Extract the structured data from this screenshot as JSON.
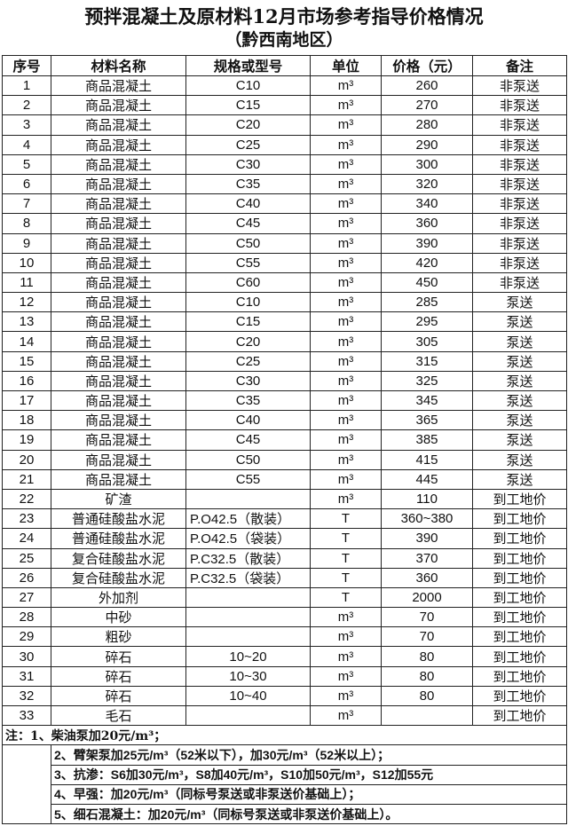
{
  "title": "预拌混凝土及原材料12月市场参考指导价格情况",
  "subtitle": "（黔西南地区）",
  "headers": [
    "序号",
    "材料名称",
    "规格或型号",
    "单位",
    "价格（元）",
    "备注"
  ],
  "rows": [
    [
      "1",
      "商品混凝土",
      "C10",
      "m³",
      "260",
      "非泵送"
    ],
    [
      "2",
      "商品混凝土",
      "C15",
      "m³",
      "270",
      "非泵送"
    ],
    [
      "3",
      "商品混凝土",
      "C20",
      "m³",
      "280",
      "非泵送"
    ],
    [
      "4",
      "商品混凝土",
      "C25",
      "m³",
      "290",
      "非泵送"
    ],
    [
      "5",
      "商品混凝土",
      "C30",
      "m³",
      "300",
      "非泵送"
    ],
    [
      "6",
      "商品混凝土",
      "C35",
      "m³",
      "320",
      "非泵送"
    ],
    [
      "7",
      "商品混凝土",
      "C40",
      "m³",
      "340",
      "非泵送"
    ],
    [
      "8",
      "商品混凝土",
      "C45",
      "m³",
      "360",
      "非泵送"
    ],
    [
      "9",
      "商品混凝土",
      "C50",
      "m³",
      "390",
      "非泵送"
    ],
    [
      "10",
      "商品混凝土",
      "C55",
      "m³",
      "420",
      "非泵送"
    ],
    [
      "11",
      "商品混凝土",
      "C60",
      "m³",
      "450",
      "非泵送"
    ],
    [
      "12",
      "商品混凝土",
      "C10",
      "m³",
      "285",
      "泵送"
    ],
    [
      "13",
      "商品混凝土",
      "C15",
      "m³",
      "295",
      "泵送"
    ],
    [
      "14",
      "商品混凝土",
      "C20",
      "m³",
      "305",
      "泵送"
    ],
    [
      "15",
      "商品混凝土",
      "C25",
      "m³",
      "315",
      "泵送"
    ],
    [
      "16",
      "商品混凝土",
      "C30",
      "m³",
      "325",
      "泵送"
    ],
    [
      "17",
      "商品混凝土",
      "C35",
      "m³",
      "345",
      "泵送"
    ],
    [
      "18",
      "商品混凝土",
      "C40",
      "m³",
      "365",
      "泵送"
    ],
    [
      "19",
      "商品混凝土",
      "C45",
      "m³",
      "385",
      "泵送"
    ],
    [
      "20",
      "商品混凝土",
      "C50",
      "m³",
      "415",
      "泵送"
    ],
    [
      "21",
      "商品混凝土",
      "C55",
      "m³",
      "445",
      "泵送"
    ],
    [
      "22",
      "矿渣",
      "",
      "m³",
      "110",
      "到工地价"
    ],
    [
      "23",
      "普通硅酸盐水泥",
      "P.O42.5（散装）",
      "T",
      "360~380",
      "到工地价"
    ],
    [
      "24",
      "普通硅酸盐水泥",
      "P.O42.5（袋装）",
      "T",
      "390",
      "到工地价"
    ],
    [
      "25",
      "复合硅酸盐水泥",
      "P.C32.5（散装）",
      "T",
      "370",
      "到工地价"
    ],
    [
      "26",
      "复合硅酸盐水泥",
      "P.C32.5（袋装）",
      "T",
      "360",
      "到工地价"
    ],
    [
      "27",
      "外加剂",
      "",
      "T",
      "2000",
      "到工地价"
    ],
    [
      "28",
      "中砂",
      "",
      "m³",
      "70",
      "到工地价"
    ],
    [
      "29",
      "粗砂",
      "",
      "m³",
      "70",
      "到工地价"
    ],
    [
      "30",
      "碎石",
      "10~20",
      "m³",
      "80",
      "到工地价"
    ],
    [
      "31",
      "碎石",
      "10~30",
      "m³",
      "80",
      "到工地价"
    ],
    [
      "32",
      "碎石",
      "10~40",
      "m³",
      "80",
      "到工地价"
    ],
    [
      "33",
      "毛石",
      "",
      "m³",
      "",
      "到工地价"
    ]
  ],
  "notes": [
    "注：1、柴油泵加20元/m³；",
    "2、臂架泵加25元/m³（52米以下），加30元/m³（52米以上）；",
    "3、抗渗：S6加30元/m³，S8加40元/m³，S10加50元/m³，S12加55元",
    "4、早强：加20元/m³（同标号泵送或非泵送价基础上）；",
    "5、细石混凝土：加20元/m³（同标号泵送或非泵送价基础上）。"
  ]
}
